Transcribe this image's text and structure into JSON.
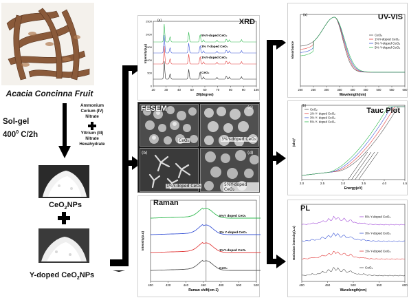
{
  "left": {
    "fruit_label": "Acacia Concinna Fruit",
    "process_label_line1": "Sol-gel",
    "process_label_line2": "400",
    "process_label_sup": "0",
    "process_label_line2b": " C/2h",
    "reagent1": [
      "Ammonium",
      "Cerium (IV)",
      "Nitrate"
    ],
    "reagent2": [
      "Yttrium (III)",
      "Nitrate",
      "Hexahydrate"
    ],
    "product1": "CeO",
    "product1_sub": "2",
    "product1_suffix": "NPs",
    "product2": "Y-doped CeO",
    "product2_sub": "2",
    "product2_suffix": "NPs"
  },
  "xrd": {
    "title": "XRD",
    "panel_letter": "(a)",
    "xlabel": "2θ(degree)",
    "ylabel": "Intensity(a.u)",
    "series": [
      "5%Y-doped CeO₂",
      "3% Y-doped CeO₂",
      "1%Y-doped CeO₂",
      "CeO₂"
    ],
    "colors": [
      "#2db84d",
      "#3a55d6",
      "#e23b3b",
      "#222222"
    ],
    "xticks": [
      "20",
      "30",
      "40",
      "50",
      "60",
      "70",
      "80",
      "90",
      "100"
    ],
    "yticks": [
      "0",
      "500",
      "1000",
      "1500",
      "2000",
      "2500"
    ]
  },
  "fesem": {
    "title": "FESEM",
    "captions": [
      "CeO₂",
      "1%Y-doped CeO₂",
      "3%Y-doped CeO₂",
      "5%Y-doped CeO₂"
    ],
    "letters": [
      "(a)",
      "(b)",
      "(c)",
      "(d)"
    ]
  },
  "raman": {
    "title": "Raman",
    "xlabel": "Raman shift(cm-1)",
    "ylabel": "Intensity(a.u)",
    "series": [
      "5%Y doped CeO₂",
      "3% Y-doped CeO₂",
      "1%Y-doped CeO₂",
      "CeO₂"
    ],
    "colors": [
      "#2db84d",
      "#3a55d6",
      "#e23b3b",
      "#555555"
    ],
    "xticks": [
      "400",
      "420",
      "440",
      "460",
      "480",
      "500",
      "520"
    ]
  },
  "uvvis": {
    "title": "UV-VIS",
    "panel_letter": "(a)",
    "xlabel": "Wavelength(nm)",
    "ylabel": "Absorbance",
    "series": [
      "CeO₂",
      "1%Y-doped CeO₂",
      "3% Y-doped CeO₂",
      "5% Y-doped CeO₂"
    ],
    "colors": [
      "#555555",
      "#e23b3b",
      "#3a55d6",
      "#2db84d"
    ],
    "xticks": [
      "200",
      "250",
      "300",
      "350",
      "400",
      "450",
      "500",
      "550",
      "600"
    ]
  },
  "tauc": {
    "title": "Tauc Plot",
    "panel_letter": "(b)",
    "xlabel": "Energy(eV)",
    "ylabel": "(αhν)²",
    "series": [
      "CeO₂",
      "1% Y- doped CeO₂",
      "3% Y- doped CeO₂",
      "5% Y- doped CeO₂"
    ],
    "colors": [
      "#555555",
      "#e23b3b",
      "#3a55d6",
      "#2db84d"
    ],
    "xticks": [
      "2.0",
      "2.5",
      "3.0",
      "3.5",
      "4.0",
      "4.5"
    ]
  },
  "pl": {
    "title": "PL",
    "xlabel": "Wavelength(nm)",
    "ylabel": "Emission intensity(a.u)",
    "series": [
      "5% Y-doped CeO₂",
      "3% Y-doped CeO₂",
      "1% Y-doped CeO₂",
      "CeO₂"
    ],
    "colors": [
      "#a14ad8",
      "#3a55d6",
      "#e23b3b",
      "#555555"
    ],
    "xticks": [
      "400",
      "450",
      "500",
      "550",
      "600"
    ]
  }
}
